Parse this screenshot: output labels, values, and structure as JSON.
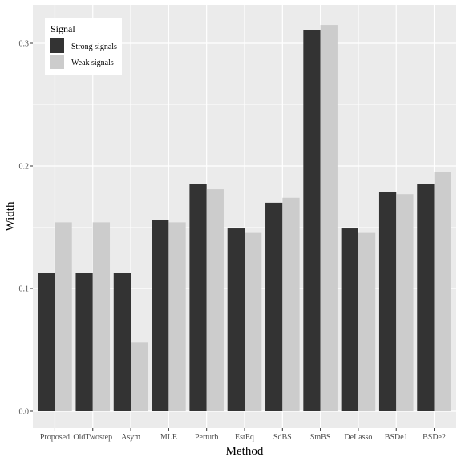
{
  "chart_data": {
    "type": "bar",
    "xlabel": "Method",
    "ylabel": "Width",
    "categories": [
      "Proposed",
      "OldTwostep",
      "Asym",
      "MLE",
      "Perturb",
      "EstEq",
      "SdBS",
      "SmBS",
      "DeLasso",
      "BSDe1",
      "BSDe2"
    ],
    "series": [
      {
        "name": "Strong signals",
        "color": "#333333",
        "values": [
          0.113,
          0.113,
          0.113,
          0.156,
          0.185,
          0.149,
          0.17,
          0.311,
          0.149,
          0.179,
          0.185
        ]
      },
      {
        "name": "Weak signals",
        "color": "#cccccc",
        "values": [
          0.154,
          0.154,
          0.056,
          0.154,
          0.181,
          0.146,
          0.174,
          0.315,
          0.146,
          0.177,
          0.195
        ]
      }
    ],
    "ylim": [
      0.0,
      0.315
    ],
    "yticks": [
      {
        "value": 0.0,
        "label": "0.0"
      },
      {
        "value": 0.1,
        "label": "0.1"
      },
      {
        "value": 0.2,
        "label": "0.2"
      },
      {
        "value": 0.3,
        "label": "0.3"
      }
    ],
    "grid": true,
    "panel_color": "#ebebeb",
    "legend": {
      "title": "Signal",
      "position": "top-left",
      "entries": [
        "Strong signals",
        "Weak signals"
      ]
    }
  }
}
